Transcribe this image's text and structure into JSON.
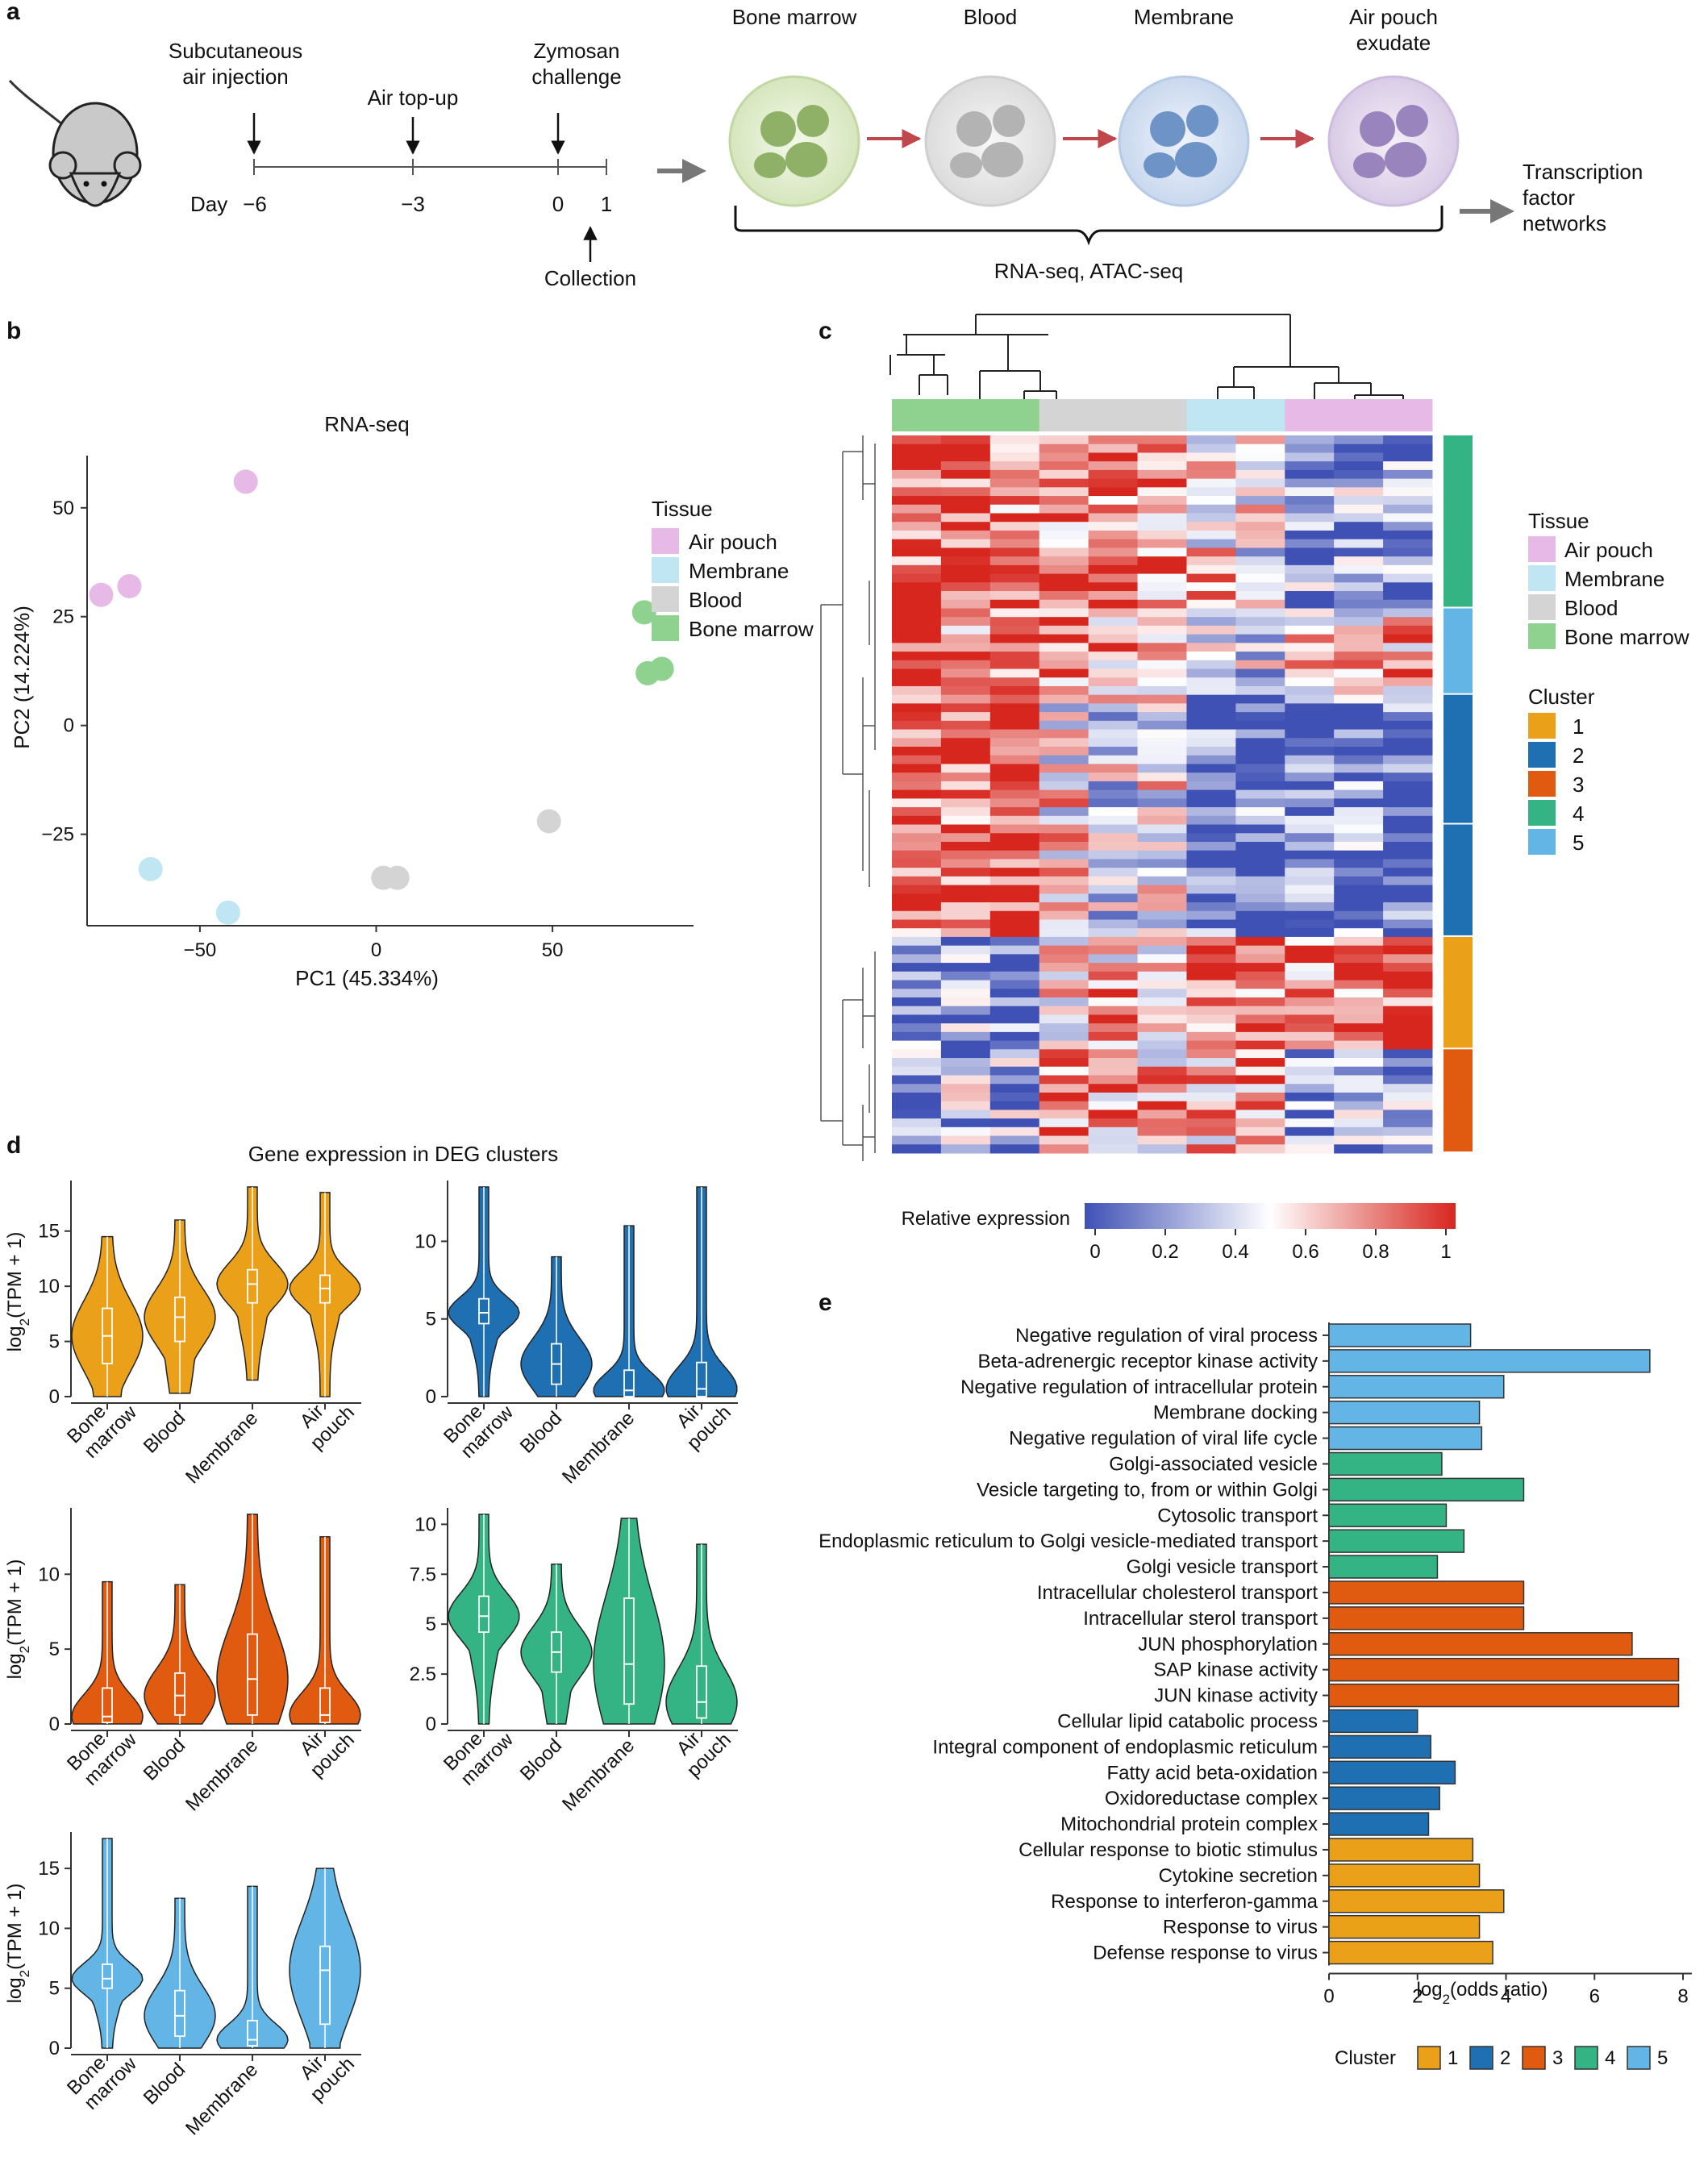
{
  "panel_labels": {
    "a": "a",
    "b": "b",
    "c": "c",
    "d": "d",
    "e": "e"
  },
  "colors": {
    "air_pouch": "#e6b9e6",
    "membrane": "#bfe6f2",
    "blood": "#d4d4d4",
    "bone_marrow": "#8fd18f",
    "cluster1": "#eba01a",
    "cluster2": "#1f6fb3",
    "cluster3": "#e05a10",
    "cluster4": "#34b384",
    "cluster5": "#62b5e5",
    "heat_low": "#3f51b5",
    "heat_mid": "#ffffff",
    "heat_high": "#d7261e"
  },
  "panel_a": {
    "day_label": "Day",
    "ticks": [
      "−6",
      "−3",
      "0",
      "1"
    ],
    "events": {
      "air_injection": [
        "Subcutaneous",
        "air injection"
      ],
      "air_topup": "Air top-up",
      "zymosan": [
        "Zymosan",
        "challenge"
      ],
      "collection": "Collection"
    },
    "cells": [
      [
        "Bone marrow"
      ],
      [
        "Blood"
      ],
      [
        "Membrane"
      ],
      [
        "Air pouch",
        "exudate"
      ]
    ],
    "assays": "RNA-seq, ATAC-seq",
    "result": [
      "Transcription",
      "factor",
      "networks"
    ]
  },
  "legend": {
    "tissue_title": "Tissue",
    "tissues": [
      "Air pouch",
      "Membrane",
      "Blood",
      "Bone marrow"
    ],
    "cluster_title": "Cluster",
    "clusters": [
      "1",
      "2",
      "3",
      "4",
      "5"
    ]
  },
  "colorbar": {
    "label": "Relative expression",
    "ticks": [
      "0",
      "0.2",
      "0.4",
      "0.6",
      "0.8",
      "1"
    ]
  },
  "violin_titles": {
    "title": "Gene expression in DEG clusters",
    "ylabel_main": "log",
    "ylabel_sub": "2",
    "ylabel_rest": "(TPM + 1)"
  },
  "chart_data": [
    {
      "type": "scatter",
      "title": "RNA-seq",
      "xlabel": "PC1 (45.334%)",
      "ylabel": "PC2 (14.224%)",
      "xlim": [
        -82,
        90
      ],
      "ylim": [
        -46,
        62
      ],
      "xticks": [
        -50,
        0,
        50
      ],
      "yticks": [
        50,
        25,
        0,
        -25
      ],
      "series": [
        {
          "name": "Air pouch",
          "points": [
            [
              -37,
              56
            ],
            [
              -78,
              30
            ],
            [
              -70,
              32
            ]
          ]
        },
        {
          "name": "Membrane",
          "points": [
            [
              -64,
              -33
            ],
            [
              -42,
              -43
            ]
          ]
        },
        {
          "name": "Blood",
          "points": [
            [
              49,
              -22
            ],
            [
              2,
              -35
            ],
            [
              6,
              -35
            ]
          ]
        },
        {
          "name": "Bone marrow",
          "points": [
            [
              76,
              26
            ],
            [
              77,
              12
            ],
            [
              81,
              13
            ]
          ]
        }
      ]
    },
    {
      "type": "heatmap",
      "title": "",
      "columns_tissue": [
        "Bone marrow",
        "Bone marrow",
        "Bone marrow",
        "Blood",
        "Blood",
        "Blood",
        "Membrane",
        "Membrane",
        "Air pouch",
        "Air pouch",
        "Air pouch"
      ],
      "row_clusters": [
        {
          "cluster": "4",
          "rows": 20
        },
        {
          "cluster": "5",
          "rows": 10
        },
        {
          "cluster": "2",
          "rows": 15
        },
        {
          "cluster": "2",
          "rows": 13
        },
        {
          "cluster": "1",
          "rows": 13
        },
        {
          "cluster": "3",
          "rows": 12
        }
      ],
      "cluster_profiles": {
        "4": [
          0.9,
          0.9,
          0.85,
          0.8,
          0.85,
          0.8,
          0.6,
          0.45,
          0.2,
          0.25,
          0.2
        ],
        "5": [
          0.85,
          0.8,
          0.85,
          0.8,
          0.7,
          0.75,
          0.45,
          0.4,
          0.7,
          0.6,
          0.65
        ],
        "2": [
          0.9,
          0.88,
          0.92,
          0.55,
          0.45,
          0.5,
          0.15,
          0.15,
          0.1,
          0.15,
          0.1
        ],
        "1": [
          0.15,
          0.2,
          0.15,
          0.6,
          0.65,
          0.6,
          0.85,
          0.85,
          0.75,
          0.85,
          0.9
        ],
        "3": [
          0.2,
          0.3,
          0.25,
          0.7,
          0.7,
          0.65,
          0.7,
          0.8,
          0.2,
          0.25,
          0.3
        ]
      },
      "value_range": [
        0,
        1
      ]
    },
    {
      "type": "violin",
      "xlabel": "",
      "ylabel": "log2(TPM + 1)",
      "categories": [
        "Bone marrow",
        "Blood",
        "Membrane",
        "Air pouch"
      ],
      "panels": [
        {
          "cluster": "1",
          "ylim": [
            0,
            19
          ],
          "yticks": [
            0,
            5,
            10,
            15
          ],
          "median": [
            5.5,
            7.2,
            10.2,
            9.8
          ],
          "q1": [
            3,
            5,
            8.5,
            8.5
          ],
          "q3": [
            8,
            9,
            11.5,
            11
          ],
          "min": [
            0,
            0.3,
            1.5,
            0
          ],
          "max": [
            14.5,
            16,
            19,
            18.5
          ]
        },
        {
          "cluster": "2",
          "ylim": [
            0,
            13.5
          ],
          "yticks": [
            0,
            5,
            10
          ],
          "median": [
            5.4,
            2.1,
            0.4,
            0.5
          ],
          "q1": [
            4.7,
            0.8,
            0,
            0
          ],
          "q3": [
            6.3,
            3.4,
            1.7,
            2.2
          ],
          "min": [
            0,
            0,
            0,
            0
          ],
          "max": [
            13.5,
            9,
            11,
            13.5
          ]
        },
        {
          "cluster": "3",
          "ylim": [
            0,
            14
          ],
          "yticks": [
            0,
            5,
            10
          ],
          "median": [
            0.5,
            1.9,
            3,
            0.6
          ],
          "q1": [
            0.1,
            0.6,
            0.6,
            0.1
          ],
          "q3": [
            2.4,
            3.4,
            6,
            2.4
          ],
          "min": [
            0,
            0,
            0,
            0
          ],
          "max": [
            9.5,
            9.3,
            14,
            12.5
          ]
        },
        {
          "cluster": "4",
          "ylim": [
            0,
            10.5
          ],
          "yticks": [
            0,
            2.5,
            5,
            7.5,
            10
          ],
          "median": [
            5.4,
            3.6,
            3,
            1.1
          ],
          "q1": [
            4.6,
            2.6,
            1,
            0.3
          ],
          "q3": [
            6.4,
            4.6,
            6.3,
            2.9
          ],
          "min": [
            0,
            0,
            0,
            0
          ],
          "max": [
            10.5,
            8,
            10.3,
            9
          ]
        },
        {
          "cluster": "5",
          "ylim": [
            0,
            17.5
          ],
          "yticks": [
            0,
            5,
            10,
            15
          ],
          "median": [
            5.8,
            2.7,
            0.7,
            6.5
          ],
          "q1": [
            5,
            1,
            0.2,
            2
          ],
          "q3": [
            7,
            4.8,
            2.3,
            8.5
          ],
          "min": [
            0,
            0,
            0,
            0
          ],
          "max": [
            17.5,
            12.5,
            13.5,
            15
          ]
        }
      ]
    },
    {
      "type": "bar",
      "orientation": "horizontal",
      "xlabel_main": "log",
      "xlabel_sub": "2",
      "xlabel_rest": "(odds ratio)",
      "xlim": [
        0,
        8.2
      ],
      "xticks": [
        0,
        2,
        4,
        6,
        8
      ],
      "categories": [
        "Negative regulation of viral process",
        "Beta-adrenergic receptor kinase activity",
        "Negative regulation of intracellular protein",
        "Membrane docking",
        "Negative regulation of viral life cycle",
        "Golgi-associated vesicle",
        "Vesicle targeting to, from or within Golgi",
        "Cytosolic transport",
        "Endoplasmic reticulum to Golgi vesicle-mediated transport",
        "Golgi vesicle transport",
        "Intracellular cholesterol transport",
        "Intracellular sterol transport",
        "JUN phosphorylation",
        "SAP kinase activity",
        "JUN kinase activity",
        "Cellular lipid catabolic process",
        "Integral component of endoplasmic reticulum",
        "Fatty acid beta-oxidation",
        "Oxidoreductase complex",
        "Mitochondrial protein complex",
        "Cellular response to biotic stimulus",
        "Cytokine secretion",
        "Response to interferon-gamma",
        "Response to virus",
        "Defense response to virus"
      ],
      "values": [
        3.2,
        7.25,
        3.95,
        3.4,
        3.45,
        2.55,
        4.4,
        2.65,
        3.05,
        2.45,
        4.4,
        4.4,
        6.85,
        7.9,
        7.9,
        2.0,
        2.3,
        2.85,
        2.5,
        2.25,
        3.25,
        3.4,
        3.95,
        3.4,
        3.7
      ],
      "cluster": [
        "5",
        "5",
        "5",
        "5",
        "5",
        "4",
        "4",
        "4",
        "4",
        "4",
        "3",
        "3",
        "3",
        "3",
        "3",
        "2",
        "2",
        "2",
        "2",
        "2",
        "1",
        "1",
        "1",
        "1",
        "1"
      ],
      "legend_title": "Cluster",
      "legend": [
        "1",
        "2",
        "3",
        "4",
        "5"
      ]
    }
  ]
}
